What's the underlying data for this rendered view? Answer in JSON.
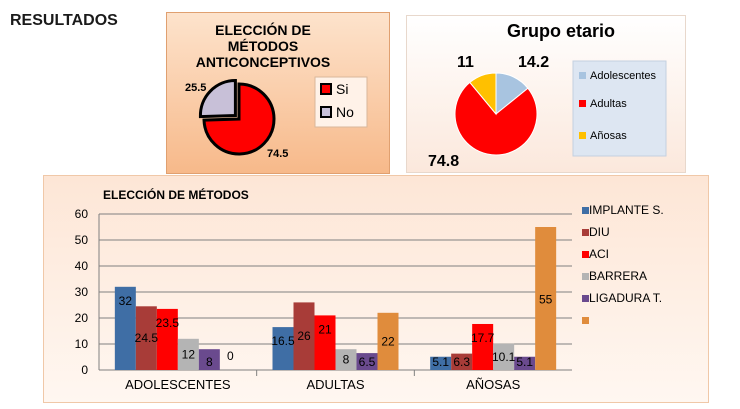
{
  "page": {
    "heading": "RESULTADOS"
  },
  "chart_data": [
    {
      "type": "pie",
      "title_lines": [
        "ELECCIÓN DE",
        "MÉTODOS",
        "ANTICONCEPTIVOS"
      ],
      "categories": [
        "Si",
        "No"
      ],
      "values": [
        74.5,
        25.5
      ],
      "value_labels": [
        "74.5",
        "25.5"
      ],
      "colors": [
        "#ff0000",
        "#c8c0d8"
      ],
      "legend_position": "right",
      "exploded": "No"
    },
    {
      "type": "pie",
      "title": "Grupo etario",
      "categories": [
        "Adolescentes",
        "Adultas",
        "Añosas"
      ],
      "values": [
        14.2,
        74.8,
        11
      ],
      "value_labels": [
        "14.2",
        "74.8",
        "11"
      ],
      "colors": [
        "#a8c4e0",
        "#ff0000",
        "#ffc000"
      ],
      "legend_position": "right"
    },
    {
      "type": "bar",
      "title": "ELECCIÓN DE MÉTODOS",
      "categories": [
        "ADOLESCENTES",
        "ADULTAS",
        "AÑOSAS"
      ],
      "series": [
        {
          "name": "IMPLANTE  S.",
          "values": [
            32,
            16.5,
            5.1
          ],
          "labels": [
            "32",
            "16.5",
            "5.1"
          ],
          "color": "#3f6ea5"
        },
        {
          "name": "DIU",
          "values": [
            24.5,
            26,
            6.3
          ],
          "labels": [
            "24.5",
            "26",
            "6.3"
          ],
          "color": "#a83c38"
        },
        {
          "name": "  ACI",
          "values": [
            23.5,
            21,
            17.7
          ],
          "labels": [
            "23.5",
            "21",
            "17.7"
          ],
          "color": "#ff0000"
        },
        {
          "name": "BARRERA",
          "values": [
            12,
            8,
            10.1
          ],
          "labels": [
            "12",
            "8",
            "10.1"
          ],
          "color": "#b4b4b4"
        },
        {
          "name": "LIGADURA  T.",
          "values": [
            8,
            6.5,
            5.1
          ],
          "labels": [
            "8",
            "6.5",
            "5.1"
          ],
          "color": "#6a4a8e"
        },
        {
          "values": [
            0,
            22,
            55
          ],
          "labels": [
            "0",
            "22",
            "55"
          ],
          "color": "#e08c3c"
        }
      ],
      "ylim": [
        0,
        60
      ],
      "yticks": [
        0,
        10,
        20,
        30,
        40,
        50,
        60
      ],
      "grid": true,
      "legend_position": "right"
    }
  ]
}
